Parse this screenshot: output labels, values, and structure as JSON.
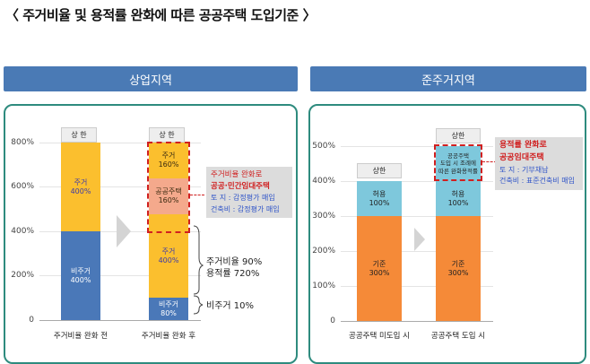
{
  "title": "〈 주거비율 및 용적률 완화에 따른 공공주택 도입기준 〉",
  "left_panel": {
    "header": "상업지역",
    "y_ticks": [
      "800%",
      "600%",
      "400%",
      "200%",
      "0"
    ],
    "bar1": {
      "cap": "상 한",
      "top_label": "주거",
      "top_value": "400%",
      "bottom_label": "비주거",
      "bottom_value": "400%",
      "xlabel": "주거비율 완화 전"
    },
    "bar2": {
      "cap": "상 한",
      "seg1_label": "주거",
      "seg1_value": "160%",
      "seg2_label": "공공주택",
      "seg2_value": "160%",
      "seg3_label": "주거",
      "seg3_value": "400%",
      "seg4_label": "비주거",
      "seg4_value": "80%",
      "xlabel": "주거비율 완화 후"
    },
    "callout": {
      "line1": "주거비율 완화로",
      "line2": "공공·민간임대주택",
      "line3": "토    지 : 감정평가 매입",
      "line4": "건축비 : 감정평가 매입"
    },
    "brace_upper": {
      "line1": "주거비율  90%",
      "line2": "용적률  720%"
    },
    "brace_lower": "비주거  10%"
  },
  "right_panel": {
    "header": "준주거지역",
    "y_ticks": [
      "500%",
      "400%",
      "300%",
      "200%",
      "100%",
      "0"
    ],
    "bar1": {
      "cap": "상한",
      "top_label": "허용",
      "top_value": "100%",
      "bottom_label": "기준",
      "bottom_value": "300%",
      "xlabel": "공공주택 미도입 시"
    },
    "bar2": {
      "cap": "상한",
      "top_line1": "공공주택",
      "top_line2": "도입 시 조례에",
      "top_line3": "따른 완화용적률",
      "mid_label": "허용",
      "mid_value": "100%",
      "bottom_label": "기준",
      "bottom_value": "300%",
      "xlabel": "공공주택 도입 시"
    },
    "callout": {
      "line1": "용적률 완화로",
      "line2": "공공임대주택",
      "line3": "토    지 : 기부채납",
      "line4": "건축비 : 표준건축비 매입"
    }
  },
  "colors": {
    "header": "#4a7ab5",
    "panel_border": "#2e8b7e",
    "residential": "#fbbf2e",
    "non_residential": "#4a78b8",
    "public_housing": "#f4a98c",
    "allowed": "#7ec8dc",
    "base": "#f58a38",
    "dashed_red": "#d02020"
  }
}
